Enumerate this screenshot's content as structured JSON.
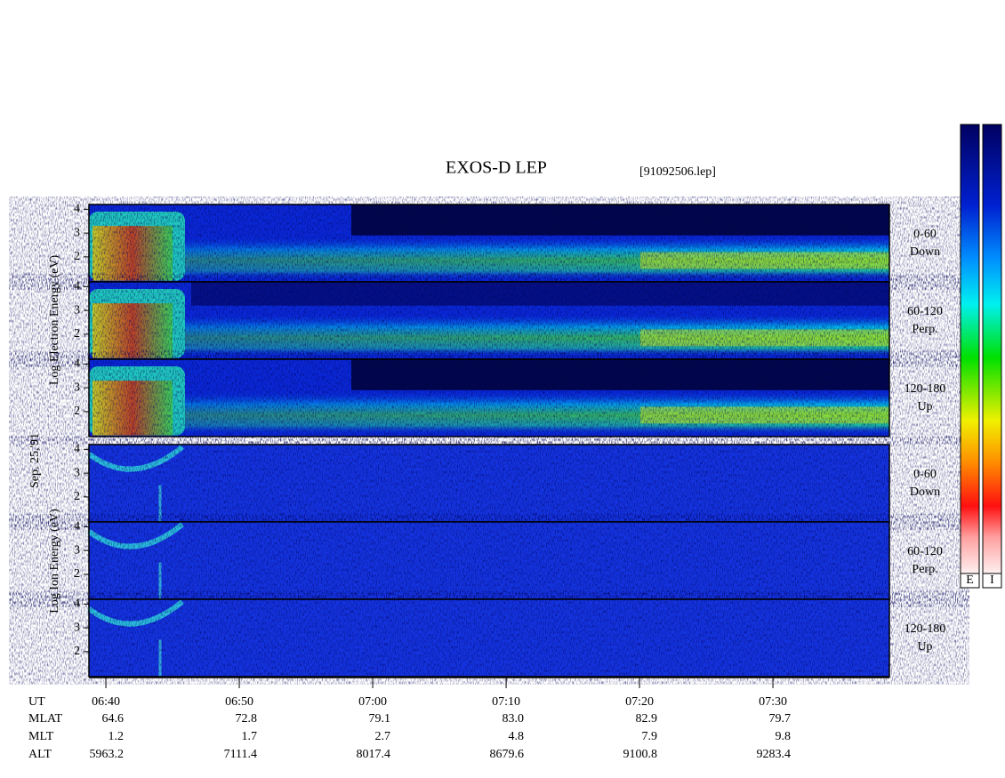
{
  "chart_data": {
    "type": "spectrogram",
    "title": "EXOS-D LEP",
    "file_label": "[91092506.lep]",
    "date_label": "Sep. 25,'91",
    "ylabels": [
      "Log   Electron   Energy (eV)",
      "Log   Ion   Energy (eV)"
    ],
    "ylim": [
      0.95,
      4.2
    ],
    "yticks": [
      2,
      3,
      4
    ],
    "panels": [
      {
        "species": "electron",
        "pitch": "0-60",
        "direction": "Down"
      },
      {
        "species": "electron",
        "pitch": "60-120",
        "direction": "Perp."
      },
      {
        "species": "electron",
        "pitch": "120-180",
        "direction": "Up"
      },
      {
        "species": "ion",
        "pitch": "0-60",
        "direction": "Down"
      },
      {
        "species": "ion",
        "pitch": "60-120",
        "direction": "Perp."
      },
      {
        "species": "ion",
        "pitch": "120-180",
        "direction": "Up"
      }
    ],
    "xlim": [
      398.73,
      458.73
    ],
    "xticks": [
      {
        "value": 400,
        "label": "06:40"
      },
      {
        "value": 410,
        "label": "06:50"
      },
      {
        "value": 420,
        "label": "07:00"
      },
      {
        "value": 430,
        "label": "07:10"
      },
      {
        "value": 440,
        "label": "07:20"
      },
      {
        "value": 450,
        "label": "07:30"
      }
    ],
    "time_row_label": "UT",
    "ephemeris": [
      {
        "name": "MLAT",
        "values": [
          "64.6",
          "72.8",
          "79.1",
          "83.0",
          "82.9",
          "79.7"
        ]
      },
      {
        "name": "MLT",
        "values": [
          "1.2",
          "1.7",
          "2.7",
          "4.8",
          "7.9",
          "9.8"
        ]
      },
      {
        "name": "ALT",
        "values": [
          "5963.2",
          "7111.4",
          "8017.4",
          "8679.6",
          "9100.8",
          "9283.4"
        ]
      }
    ],
    "colorbar_labels": [
      "E",
      "I"
    ]
  }
}
